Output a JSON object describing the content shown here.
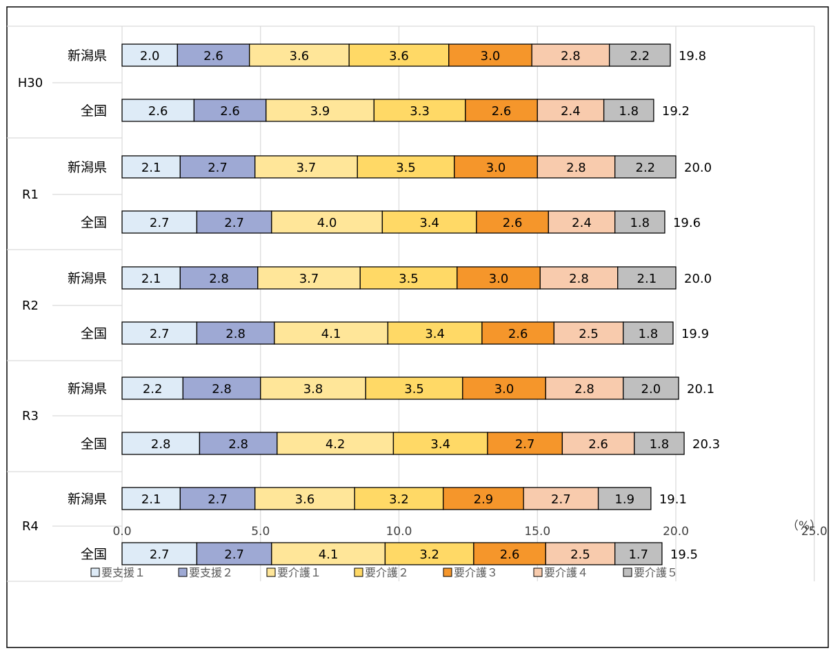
{
  "chart_data": {
    "type": "bar",
    "orientation": "horizontal",
    "stacked": true,
    "title": "",
    "xlabel": "",
    "ylabel": "",
    "unit": "（%）",
    "xlim": [
      0,
      25
    ],
    "xticks": [
      "0.0",
      "5.0",
      "10.0",
      "15.0",
      "20.0",
      "25.0"
    ],
    "grid": true,
    "legend_position": "bottom",
    "groups": [
      "H30",
      "R1",
      "R2",
      "R3",
      "R4"
    ],
    "subcategories": [
      "新潟県",
      "全国"
    ],
    "series": [
      {
        "name": "要支援１",
        "color": "#deebf7",
        "values": [
          2.0,
          2.6,
          2.1,
          2.7,
          2.1,
          2.7,
          2.2,
          2.8,
          2.1,
          2.7
        ]
      },
      {
        "name": "要支援２",
        "color": "#9ea9d4",
        "values": [
          2.6,
          2.6,
          2.7,
          2.7,
          2.8,
          2.8,
          2.8,
          2.8,
          2.7,
          2.7
        ]
      },
      {
        "name": "要介護１",
        "color": "#ffe699",
        "values": [
          3.6,
          3.9,
          3.7,
          4.0,
          3.7,
          4.1,
          3.8,
          4.2,
          3.6,
          4.1
        ]
      },
      {
        "name": "要介護２",
        "color": "#ffd966",
        "values": [
          3.6,
          3.3,
          3.5,
          3.4,
          3.5,
          3.4,
          3.5,
          3.4,
          3.2,
          3.2
        ]
      },
      {
        "name": "要介護３",
        "color": "#f5962b",
        "values": [
          3.0,
          2.6,
          3.0,
          2.6,
          3.0,
          2.6,
          3.0,
          2.7,
          2.9,
          2.6
        ]
      },
      {
        "name": "要介護４",
        "color": "#f8cbad",
        "values": [
          2.8,
          2.4,
          2.8,
          2.4,
          2.8,
          2.5,
          2.8,
          2.6,
          2.7,
          2.5
        ]
      },
      {
        "name": "要介護５",
        "color": "#bfbfbf",
        "values": [
          2.2,
          1.8,
          2.2,
          1.8,
          2.1,
          1.8,
          2.0,
          1.8,
          1.9,
          1.7
        ]
      }
    ],
    "totals": [
      19.8,
      19.2,
      20.0,
      19.6,
      20.0,
      19.9,
      20.1,
      20.3,
      19.1,
      19.5
    ]
  }
}
